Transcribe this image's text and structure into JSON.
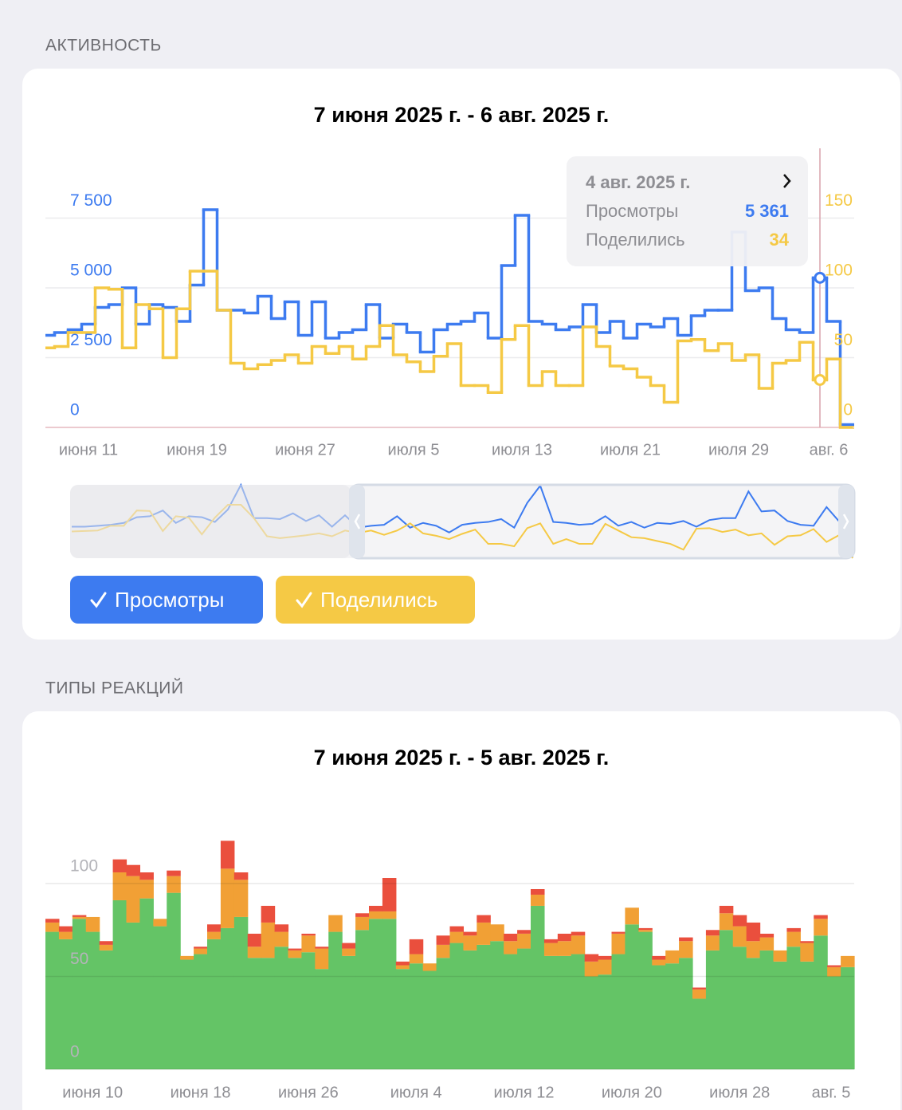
{
  "sections": [
    "АКТИВНОСТЬ",
    "ТИПЫ РЕАКЦИЙ"
  ],
  "chart_data": [
    {
      "type": "step",
      "title": "7 июня 2025 г. - 6 авг. 2025 г.",
      "categories": [
        null,
        null,
        null,
        null,
        "июня 11",
        null,
        null,
        null,
        null,
        null,
        null,
        null,
        "июня 19",
        null,
        null,
        null,
        null,
        null,
        null,
        null,
        "июня 27",
        null,
        null,
        null,
        null,
        null,
        null,
        null,
        "июля 5",
        null,
        null,
        null,
        null,
        null,
        null,
        null,
        "июля 13",
        null,
        null,
        null,
        null,
        null,
        null,
        null,
        "июля 21",
        null,
        null,
        null,
        null,
        null,
        null,
        null,
        "июля 29",
        null,
        null,
        null,
        null,
        null,
        null,
        null,
        "авг. 6"
      ],
      "series": [
        {
          "name": "Просмотры",
          "color": "#3d7bf0",
          "values": [
            3300,
            3300,
            3400,
            3500,
            3700,
            4300,
            4400,
            5000,
            3700,
            4400,
            4300,
            3800,
            5100,
            7800,
            4200,
            4200,
            4100,
            4700,
            3900,
            4500,
            3300,
            4500,
            3200,
            3400,
            3500,
            4400,
            3200,
            3700,
            3400,
            2700,
            3500,
            3700,
            3800,
            4100,
            3200,
            5800,
            7600,
            3800,
            3700,
            3500,
            3600,
            4400,
            3400,
            3800,
            3200,
            3700,
            3600,
            3900,
            3300,
            4000,
            4200,
            4200,
            7000,
            4900,
            5000,
            3900,
            3500,
            3400,
            5361,
            3800,
            100
          ]
        },
        {
          "name": "Поделились",
          "color": "#f5c945",
          "axis": "y2",
          "values": [
            56,
            57,
            58,
            68,
            68,
            100,
            99,
            57,
            88,
            85,
            50,
            85,
            112,
            112,
            84,
            46,
            42,
            45,
            48,
            52,
            46,
            58,
            53,
            58,
            49,
            58,
            73,
            52,
            47,
            40,
            51,
            60,
            30,
            30,
            25,
            63,
            73,
            30,
            40,
            30,
            30,
            72,
            58,
            44,
            42,
            36,
            30,
            18,
            62,
            63,
            55,
            60,
            48,
            52,
            28,
            46,
            48,
            61,
            34,
            49,
            0
          ]
        }
      ],
      "ylim": [
        0,
        10000
      ],
      "yticks": [
        0,
        {
          "value": 2500,
          "label": "2 500"
        },
        {
          "value": 5000,
          "label": "5 000"
        },
        {
          "value": 7500,
          "label": "7 500"
        }
      ],
      "y2lim": [
        0,
        200
      ],
      "y2ticks": [
        0,
        50,
        100,
        150
      ],
      "grid": true,
      "tooltip": {
        "title": "4 авг. 2025 г.",
        "values": [
          {
            "value": 5361,
            "label": "5 361"
          },
          34
        ]
      }
    },
    {
      "type": "stacked_bar",
      "title": "7 июня 2025 г. - 5 авг. 2025 г.",
      "categories": [
        null,
        null,
        null,
        "июня 10",
        null,
        null,
        null,
        null,
        null,
        null,
        null,
        "июня 18",
        null,
        null,
        null,
        null,
        null,
        null,
        null,
        "июня 26",
        null,
        null,
        null,
        null,
        null,
        null,
        null,
        "июля 4",
        null,
        null,
        null,
        null,
        null,
        null,
        null,
        "июля 12",
        null,
        null,
        null,
        null,
        null,
        null,
        null,
        "июля 20",
        null,
        null,
        null,
        null,
        null,
        null,
        null,
        "июля 28",
        null,
        null,
        null,
        null,
        null,
        null,
        null,
        "авг. 5"
      ],
      "series": [
        {
          "color": "#64c466",
          "values": [
            74,
            70,
            81,
            74,
            64,
            91,
            79,
            92,
            77,
            95,
            59,
            62,
            70,
            76,
            82,
            60,
            60,
            66,
            60,
            63,
            54,
            74,
            61,
            75,
            81,
            81,
            54,
            57,
            53,
            60,
            68,
            64,
            67,
            69,
            62,
            65,
            88,
            61,
            61,
            62,
            50,
            51,
            62,
            78,
            74,
            56,
            57,
            60,
            38,
            64,
            75,
            66,
            60,
            64,
            58,
            66,
            58,
            72,
            50,
            55
          ]
        },
        {
          "color": "#f1a035",
          "values": [
            5,
            4,
            1,
            8,
            3,
            15,
            25,
            10,
            4,
            9,
            2,
            3,
            4,
            32,
            20,
            6,
            19,
            8,
            4,
            9,
            11,
            9,
            4,
            7,
            4,
            4,
            2,
            5,
            4,
            7,
            6,
            8,
            12,
            9,
            7,
            8,
            6,
            7,
            8,
            10,
            8,
            8,
            11,
            9,
            1,
            3,
            7,
            9,
            5,
            8,
            9,
            11,
            9,
            7,
            6,
            8,
            10,
            9,
            5,
            6
          ]
        },
        {
          "color": "#ea4f3d",
          "values": [
            2,
            3,
            1,
            0,
            2,
            7,
            6,
            4,
            0,
            3,
            0,
            1,
            4,
            15,
            4,
            7,
            9,
            4,
            1,
            1,
            1,
            0,
            3,
            2,
            3,
            18,
            2,
            8,
            0,
            5,
            3,
            2,
            4,
            0,
            4,
            2,
            3,
            2,
            4,
            2,
            4,
            2,
            1,
            0,
            1,
            2,
            0,
            2,
            1,
            3,
            4,
            6,
            10,
            2,
            0,
            2,
            1,
            2,
            1,
            0
          ]
        }
      ],
      "ylim": [
        0,
        150
      ],
      "yticks": [
        0,
        50,
        100
      ],
      "grid": true
    }
  ]
}
